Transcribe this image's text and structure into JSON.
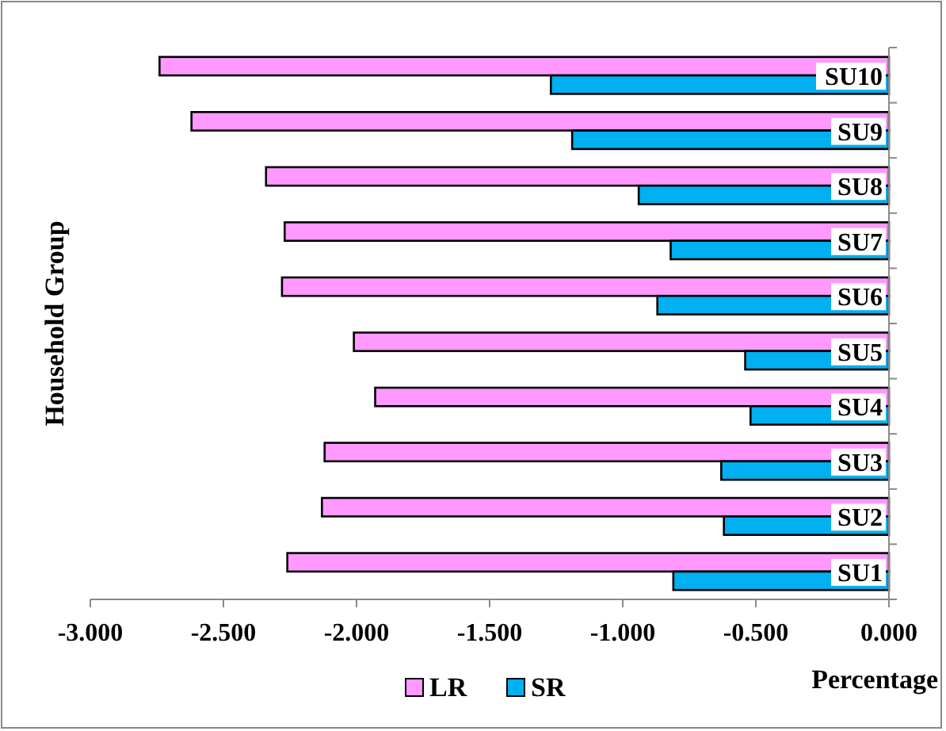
{
  "chart_data": {
    "type": "bar",
    "orientation": "horizontal",
    "ylabel": "Household Group",
    "xlabel": "Percentage",
    "categories": [
      "SU10",
      "SU9",
      "SU8",
      "SU7",
      "SU6",
      "SU5",
      "SU4",
      "SU3",
      "SU2",
      "SU1"
    ],
    "series": [
      {
        "name": "LR",
        "color": "#ff99ff",
        "values": [
          -2.74,
          -2.62,
          -2.34,
          -2.27,
          -2.28,
          -2.01,
          -1.93,
          -2.12,
          -2.13,
          -2.26
        ]
      },
      {
        "name": "SR",
        "color": "#00b0f0",
        "values": [
          -1.27,
          -1.19,
          -0.94,
          -0.82,
          -0.87,
          -0.54,
          -0.52,
          -0.63,
          -0.62,
          -0.81
        ]
      }
    ],
    "xlim": [
      -3,
      0
    ],
    "xticks": [
      {
        "value": -3,
        "label": "-3.000"
      },
      {
        "value": -2.5,
        "label": "-2.500"
      },
      {
        "value": -2,
        "label": "-2.000"
      },
      {
        "value": -1.5,
        "label": "-1.500"
      },
      {
        "value": -1,
        "label": "-1.000"
      },
      {
        "value": -0.5,
        "label": "-0.500"
      },
      {
        "value": 0,
        "label": "0.000"
      }
    ],
    "grid": false,
    "legend": "bottom"
  }
}
